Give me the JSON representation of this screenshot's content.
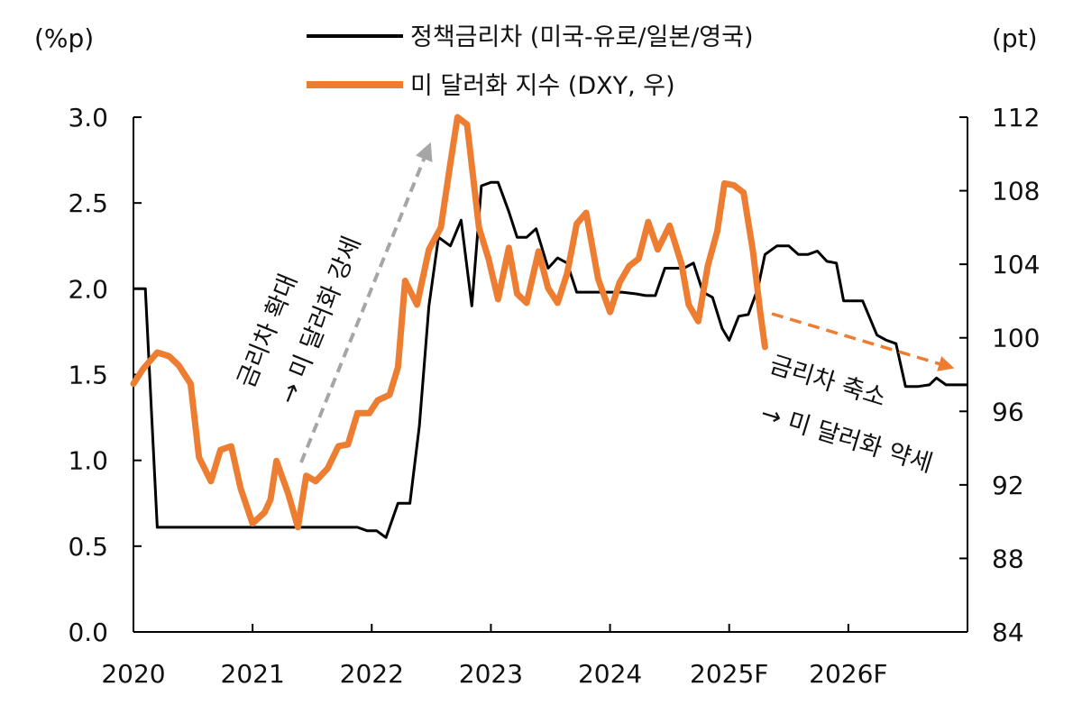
{
  "chart_data": {
    "type": "line",
    "left_axis": {
      "unit": "(%p)",
      "ylim": [
        0.0,
        3.0
      ],
      "ticks": [
        "0.0",
        "0.5",
        "1.0",
        "1.5",
        "2.0",
        "2.5",
        "3.0"
      ]
    },
    "right_axis": {
      "unit": "(pt)",
      "ylim": [
        84,
        112
      ],
      "ticks": [
        "84",
        "88",
        "92",
        "96",
        "100",
        "104",
        "108",
        "112"
      ]
    },
    "x_axis": {
      "xlim": [
        2020,
        2027
      ],
      "ticks": [
        "2020",
        "2021",
        "2022",
        "2023",
        "2024",
        "2025F",
        "2026F"
      ]
    },
    "legend": {
      "placement": "top"
    },
    "colors": {
      "rate_diff": "#000000",
      "dxy": "#ED7D31",
      "arrow_gray": "#A6A6A6",
      "arrow_orange": "#ED7D31"
    },
    "series": [
      {
        "name": "정책금리차 (미국-유로/일본/영국)",
        "axis": "left",
        "color": "#000000",
        "points": [
          [
            2020.0,
            2.0
          ],
          [
            2020.1,
            2.0
          ],
          [
            2020.2,
            0.61
          ],
          [
            2020.5,
            0.61
          ],
          [
            2020.8,
            0.61
          ],
          [
            2021.0,
            0.61
          ],
          [
            2021.3,
            0.61
          ],
          [
            2021.6,
            0.61
          ],
          [
            2021.88,
            0.61
          ],
          [
            2021.96,
            0.59
          ],
          [
            2022.04,
            0.59
          ],
          [
            2022.12,
            0.55
          ],
          [
            2022.22,
            0.75
          ],
          [
            2022.32,
            0.75
          ],
          [
            2022.4,
            1.2
          ],
          [
            2022.48,
            1.9
          ],
          [
            2022.56,
            2.3
          ],
          [
            2022.66,
            2.25
          ],
          [
            2022.75,
            2.4
          ],
          [
            2022.84,
            1.9
          ],
          [
            2022.92,
            2.6
          ],
          [
            2023.0,
            2.62
          ],
          [
            2023.06,
            2.62
          ],
          [
            2023.15,
            2.45
          ],
          [
            2023.22,
            2.3
          ],
          [
            2023.3,
            2.3
          ],
          [
            2023.38,
            2.35
          ],
          [
            2023.48,
            2.12
          ],
          [
            2023.56,
            2.18
          ],
          [
            2023.64,
            2.15
          ],
          [
            2023.72,
            1.98
          ],
          [
            2023.8,
            1.98
          ],
          [
            2023.9,
            1.98
          ],
          [
            2024.0,
            1.98
          ],
          [
            2024.1,
            1.98
          ],
          [
            2024.22,
            1.97
          ],
          [
            2024.3,
            1.96
          ],
          [
            2024.38,
            1.96
          ],
          [
            2024.46,
            2.12
          ],
          [
            2024.54,
            2.12
          ],
          [
            2024.62,
            2.12
          ],
          [
            2024.7,
            2.15
          ],
          [
            2024.78,
            1.98
          ],
          [
            2024.86,
            1.95
          ],
          [
            2024.94,
            1.77
          ],
          [
            2025.0,
            1.7
          ],
          [
            2025.08,
            1.84
          ],
          [
            2025.16,
            1.85
          ],
          [
            2025.24,
            2.0
          ],
          [
            2025.3,
            2.2
          ],
          [
            2025.4,
            2.25
          ],
          [
            2025.5,
            2.25
          ],
          [
            2025.58,
            2.2
          ],
          [
            2025.66,
            2.2
          ],
          [
            2025.74,
            2.22
          ],
          [
            2025.82,
            2.16
          ],
          [
            2025.9,
            2.15
          ],
          [
            2025.96,
            1.93
          ],
          [
            2026.04,
            1.93
          ],
          [
            2026.12,
            1.93
          ],
          [
            2026.24,
            1.73
          ],
          [
            2026.32,
            1.7
          ],
          [
            2026.4,
            1.68
          ],
          [
            2026.48,
            1.43
          ],
          [
            2026.58,
            1.43
          ],
          [
            2026.68,
            1.44
          ],
          [
            2026.74,
            1.48
          ],
          [
            2026.82,
            1.44
          ],
          [
            2026.9,
            1.44
          ],
          [
            2027.0,
            1.44
          ]
        ]
      },
      {
        "name": "미 달러화 지수 (DXY, 우)",
        "axis": "right",
        "color": "#ED7D31",
        "points": [
          [
            2020.0,
            97.5
          ],
          [
            2020.08,
            98.3
          ],
          [
            2020.2,
            99.2
          ],
          [
            2020.3,
            99.0
          ],
          [
            2020.38,
            98.5
          ],
          [
            2020.48,
            97.5
          ],
          [
            2020.55,
            93.5
          ],
          [
            2020.65,
            92.2
          ],
          [
            2020.73,
            93.9
          ],
          [
            2020.82,
            94.1
          ],
          [
            2020.9,
            91.8
          ],
          [
            2021.0,
            89.9
          ],
          [
            2021.1,
            90.5
          ],
          [
            2021.15,
            91.2
          ],
          [
            2021.2,
            93.3
          ],
          [
            2021.3,
            91.5
          ],
          [
            2021.38,
            89.7
          ],
          [
            2021.45,
            92.5
          ],
          [
            2021.53,
            92.2
          ],
          [
            2021.63,
            92.9
          ],
          [
            2021.72,
            94.1
          ],
          [
            2021.8,
            94.2
          ],
          [
            2021.88,
            95.9
          ],
          [
            2021.98,
            95.9
          ],
          [
            2022.05,
            96.6
          ],
          [
            2022.15,
            96.9
          ],
          [
            2022.22,
            98.4
          ],
          [
            2022.28,
            103.1
          ],
          [
            2022.38,
            101.8
          ],
          [
            2022.48,
            104.8
          ],
          [
            2022.58,
            106.0
          ],
          [
            2022.66,
            109.5
          ],
          [
            2022.72,
            112.0
          ],
          [
            2022.8,
            111.6
          ],
          [
            2022.9,
            106.0
          ],
          [
            2022.98,
            104.3
          ],
          [
            2023.06,
            102.1
          ],
          [
            2023.15,
            104.9
          ],
          [
            2023.22,
            102.4
          ],
          [
            2023.3,
            101.9
          ],
          [
            2023.4,
            104.7
          ],
          [
            2023.48,
            102.7
          ],
          [
            2023.56,
            101.9
          ],
          [
            2023.64,
            103.5
          ],
          [
            2023.72,
            106.2
          ],
          [
            2023.8,
            106.8
          ],
          [
            2023.9,
            103.2
          ],
          [
            2024.0,
            101.4
          ],
          [
            2024.08,
            103.0
          ],
          [
            2024.16,
            103.9
          ],
          [
            2024.24,
            104.3
          ],
          [
            2024.32,
            106.3
          ],
          [
            2024.4,
            104.8
          ],
          [
            2024.5,
            106.1
          ],
          [
            2024.6,
            104.0
          ],
          [
            2024.66,
            101.8
          ],
          [
            2024.74,
            100.9
          ],
          [
            2024.82,
            103.9
          ],
          [
            2024.9,
            105.8
          ],
          [
            2024.96,
            108.4
          ],
          [
            2025.04,
            108.3
          ],
          [
            2025.12,
            107.9
          ],
          [
            2025.2,
            104.7
          ],
          [
            2025.26,
            101.4
          ],
          [
            2025.3,
            99.5
          ]
        ]
      }
    ],
    "annotations": [
      {
        "text_line1": "금리차 확대",
        "text_line2": "→ 미 달러화 강세",
        "color": "#A6A6A6"
      },
      {
        "text_line1": "금리차 축소",
        "text_line2": "→ 미 달러화 약세",
        "color": "#ED7D31"
      }
    ]
  }
}
